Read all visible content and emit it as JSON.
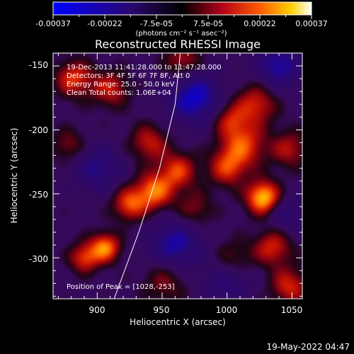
{
  "colorbar": {
    "ticks": [
      "-0.00037",
      "-0.00022",
      "-7.5e-05",
      "7.5e-05",
      "0.00022",
      "0.00037"
    ],
    "units_label": "(photons cm⁻² s⁻¹ asec⁻²)",
    "range": [
      -0.00037,
      0.00037
    ]
  },
  "plot": {
    "title": "Reconstructed RHESSI Image",
    "info_lines": [
      "19-Dec-2013 11:41:28.000 to 11:47:28.000",
      "Detectors: 3F 4F 5F 6F 7F 8F, Att 0",
      "Energy Range: 25.0 - 50.0 keV",
      "Clean     Total counts: 1.06E+04"
    ],
    "peak_label": "Position of Peak = [1028,-253]"
  },
  "footer": {
    "timestamp": "19-May-2022 04:47"
  },
  "colors": {
    "background": "#000000",
    "foreground": "#ffffff",
    "limb": "#ffffff"
  },
  "chart_data": {
    "type": "heatmap",
    "title": "Reconstructed RHESSI Image",
    "xlabel": "Heliocentric X (arcsec)",
    "ylabel": "Heliocentric Y (arcsec)",
    "xlim": [
      866,
      1058
    ],
    "ylim": [
      -332,
      -140
    ],
    "xticks": [
      900,
      950,
      1000,
      1050
    ],
    "yticks": [
      -150,
      -200,
      -250,
      -300
    ],
    "colormap": "rhessi blue-black-red-yellow-white, diverging at zero",
    "grid": false,
    "peak": [
      1028,
      -253
    ],
    "limb": [
      [
        913,
        -332
      ],
      [
        932,
        -280
      ],
      [
        948,
        -230
      ],
      [
        960,
        -180
      ],
      [
        964,
        -140
      ]
    ],
    "sources": [
      {
        "x": 1028,
        "y": -253,
        "amp": 1.0,
        "sigma": 9
      },
      {
        "x": 1012,
        "y": -212,
        "amp": 0.65,
        "sigma": 12
      },
      {
        "x": 1000,
        "y": -230,
        "amp": 0.55,
        "sigma": 10
      },
      {
        "x": 1022,
        "y": -180,
        "amp": 0.55,
        "sigma": 11
      },
      {
        "x": 1002,
        "y": -192,
        "amp": 0.45,
        "sigma": 9
      },
      {
        "x": 1048,
        "y": -215,
        "amp": 0.45,
        "sigma": 10
      },
      {
        "x": 944,
        "y": -248,
        "amp": 0.75,
        "sigma": 10
      },
      {
        "x": 962,
        "y": -232,
        "amp": 0.6,
        "sigma": 10
      },
      {
        "x": 925,
        "y": -258,
        "amp": 0.65,
        "sigma": 9
      },
      {
        "x": 940,
        "y": -210,
        "amp": 0.5,
        "sigma": 10
      },
      {
        "x": 906,
        "y": -292,
        "amp": 0.8,
        "sigma": 8
      },
      {
        "x": 890,
        "y": -300,
        "amp": 0.6,
        "sigma": 8
      },
      {
        "x": 882,
        "y": -160,
        "amp": 0.6,
        "sigma": 10
      },
      {
        "x": 910,
        "y": -168,
        "amp": 0.5,
        "sigma": 10
      },
      {
        "x": 966,
        "y": -146,
        "amp": 0.45,
        "sigma": 10
      },
      {
        "x": 1035,
        "y": -292,
        "amp": 0.55,
        "sigma": 10
      },
      {
        "x": 1048,
        "y": -322,
        "amp": 0.55,
        "sigma": 10
      },
      {
        "x": 952,
        "y": -318,
        "amp": 0.35,
        "sigma": 12
      },
      {
        "x": 878,
        "y": -212,
        "amp": 0.35,
        "sigma": 9
      },
      {
        "x": 975,
        "y": -262,
        "amp": 0.35,
        "sigma": 10
      },
      {
        "x": 1005,
        "y": -300,
        "amp": 0.3,
        "sigma": 10
      },
      {
        "x": 975,
        "y": -175,
        "amp": -0.65,
        "sigma": 14
      },
      {
        "x": 1040,
        "y": -150,
        "amp": -0.55,
        "sigma": 12
      },
      {
        "x": 960,
        "y": -290,
        "amp": -0.55,
        "sigma": 14
      },
      {
        "x": 900,
        "y": -230,
        "amp": -0.45,
        "sigma": 12
      },
      {
        "x": 1045,
        "y": -265,
        "amp": -0.35,
        "sigma": 10
      },
      {
        "x": 1000,
        "y": -320,
        "amp": -0.35,
        "sigma": 12
      }
    ]
  }
}
